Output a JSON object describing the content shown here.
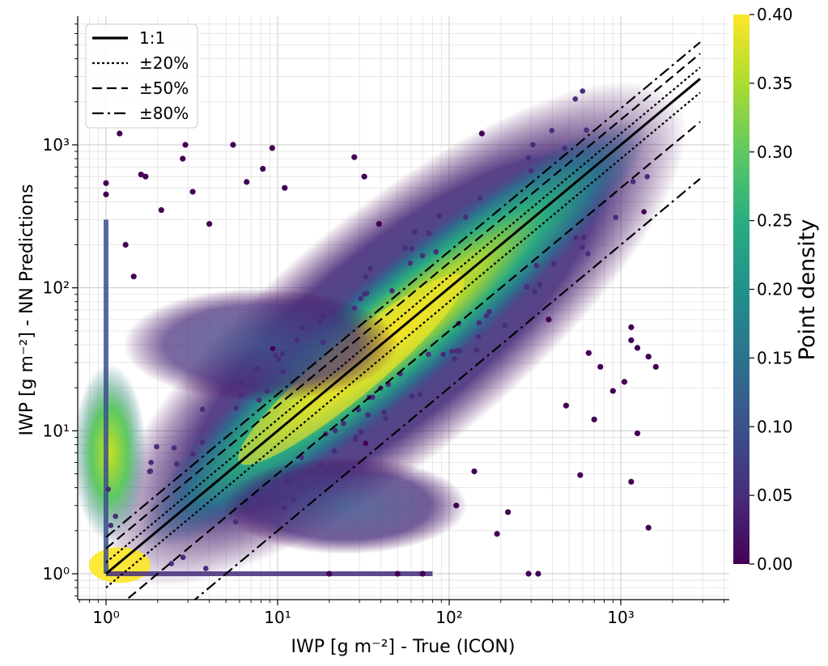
{
  "chart_data": {
    "type": "scatter",
    "scale": "log-log",
    "grid": true,
    "legend_position": "upper-left",
    "xlabel": "IWP [g m⁻²] - True (ICON)",
    "ylabel": "IWP [g m⁻²] - NN Predictions",
    "xlim": [
      0.72,
      4500
    ],
    "ylim": [
      0.66,
      8500
    ],
    "x_ticks": [
      {
        "value": 1,
        "label": "10⁰"
      },
      {
        "value": 10,
        "label": "10¹"
      },
      {
        "value": 100,
        "label": "10²"
      },
      {
        "value": 1000,
        "label": "10³"
      }
    ],
    "y_ticks": [
      {
        "value": 1,
        "label": "10⁰"
      },
      {
        "value": 10,
        "label": "10¹"
      },
      {
        "value": 100,
        "label": "10²"
      },
      {
        "value": 1000,
        "label": "10³"
      }
    ],
    "reference_lines": [
      {
        "name": "1:1",
        "style": "solid",
        "factor": 1.0
      },
      {
        "name": "±20%",
        "style": "dotted",
        "factors": [
          0.8,
          1.2
        ]
      },
      {
        "name": "±50%",
        "style": "dashed",
        "factors": [
          0.5,
          1.5
        ]
      },
      {
        "name": "±80%",
        "style": "dashdot",
        "factors": [
          0.2,
          1.8
        ]
      }
    ],
    "line_x_range": [
      1,
      2900
    ],
    "colorbar": {
      "label": "Point density",
      "colormap": "viridis",
      "range": [
        0.0,
        0.4
      ],
      "ticks": [
        "0.00",
        "0.05",
        "0.10",
        "0.15",
        "0.20",
        "0.25",
        "0.30",
        "0.35",
        "0.40"
      ]
    },
    "density_regions": [
      {
        "x": [
          5,
          150
        ],
        "y": [
          5,
          150
        ],
        "density": 0.36
      },
      {
        "x": [
          1,
          1.4
        ],
        "y": [
          3,
          15
        ],
        "density": 0.33
      },
      {
        "x": [
          1,
          1.5
        ],
        "y": [
          1,
          1.4
        ],
        "density": 0.4
      },
      {
        "x": [
          200,
          1000
        ],
        "y": [
          200,
          1000
        ],
        "density": 0.22
      },
      {
        "x": [
          2,
          60
        ],
        "y": [
          8,
          80
        ],
        "density": 0.12
      },
      {
        "x": [
          5,
          100
        ],
        "y": [
          1.5,
          8
        ],
        "density": 0.1
      }
    ],
    "outlier_points": [
      {
        "x": 1.0,
        "y": 540
      },
      {
        "x": 1.0,
        "y": 450
      },
      {
        "x": 1.6,
        "y": 620
      },
      {
        "x": 1.7,
        "y": 600
      },
      {
        "x": 1.2,
        "y": 1200
      },
      {
        "x": 2.9,
        "y": 1000
      },
      {
        "x": 2.8,
        "y": 800
      },
      {
        "x": 5.5,
        "y": 1000
      },
      {
        "x": 9.3,
        "y": 950
      },
      {
        "x": 8.2,
        "y": 680
      },
      {
        "x": 6.6,
        "y": 550
      },
      {
        "x": 3.2,
        "y": 470
      },
      {
        "x": 4.0,
        "y": 280
      },
      {
        "x": 2.1,
        "y": 350
      },
      {
        "x": 1.3,
        "y": 200
      },
      {
        "x": 1.45,
        "y": 120
      },
      {
        "x": 11,
        "y": 500
      },
      {
        "x": 28,
        "y": 820
      },
      {
        "x": 32,
        "y": 600
      },
      {
        "x": 39,
        "y": 280
      },
      {
        "x": 155,
        "y": 1200
      },
      {
        "x": 1150,
        "y": 53
      },
      {
        "x": 1150,
        "y": 43
      },
      {
        "x": 1250,
        "y": 38
      },
      {
        "x": 1450,
        "y": 33
      },
      {
        "x": 1600,
        "y": 28
      },
      {
        "x": 1050,
        "y": 22
      },
      {
        "x": 1250,
        "y": 9.6
      },
      {
        "x": 1150,
        "y": 4.4
      },
      {
        "x": 1450,
        "y": 2.1
      },
      {
        "x": 580,
        "y": 4.9
      },
      {
        "x": 290,
        "y": 1.0
      },
      {
        "x": 330,
        "y": 1.0
      },
      {
        "x": 190,
        "y": 1.9
      },
      {
        "x": 140,
        "y": 5.2
      },
      {
        "x": 70,
        "y": 1.0
      },
      {
        "x": 50,
        "y": 1.0
      },
      {
        "x": 20,
        "y": 1.0
      },
      {
        "x": 110,
        "y": 3.0
      },
      {
        "x": 220,
        "y": 2.7
      },
      {
        "x": 480,
        "y": 15
      },
      {
        "x": 700,
        "y": 12
      },
      {
        "x": 900,
        "y": 19
      },
      {
        "x": 650,
        "y": 35
      },
      {
        "x": 380,
        "y": 60
      },
      {
        "x": 760,
        "y": 28
      }
    ]
  }
}
